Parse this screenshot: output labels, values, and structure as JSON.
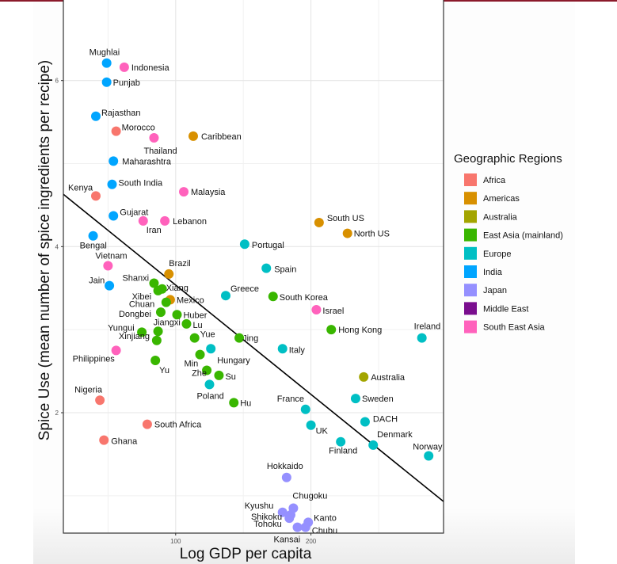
{
  "chart_data": {
    "type": "scatter",
    "title": "",
    "xlabel": "Log GDP per capita",
    "ylabel": "Spice Use (mean number of spice ingredients per recipe)",
    "xlim": [
      17,
      298
    ],
    "ylim": [
      0.55,
      6.97
    ],
    "xticks": [
      100,
      200
    ],
    "xtick_labels": [
      "100",
      "200"
    ],
    "yticks": [
      2,
      4,
      6
    ],
    "ytick_labels": [
      "2",
      "4",
      "6"
    ],
    "x_minor_grid": [
      50,
      150,
      250
    ],
    "y_minor_grid": [
      1,
      3,
      5
    ],
    "grid": true,
    "legend": {
      "title": "Geographic Regions",
      "position": "right",
      "entries": [
        {
          "name": "Africa",
          "color": "#f8766d"
        },
        {
          "name": "Americas",
          "color": "#d89000"
        },
        {
          "name": "Australia",
          "color": "#a3a500"
        },
        {
          "name": "East Asia (mainland)",
          "color": "#39b600"
        },
        {
          "name": "Europe",
          "color": "#00bfc4"
        },
        {
          "name": "India",
          "color": "#00a5ff"
        },
        {
          "name": "Japan",
          "color": "#9590ff"
        },
        {
          "name": "Middle East",
          "color": "#7a0e8e"
        },
        {
          "name": "South East Asia",
          "color": "#ff62bc"
        }
      ]
    },
    "trend_line": {
      "x": [
        17,
        298
      ],
      "y": [
        4.63,
        0.93
      ]
    },
    "points": [
      {
        "label": "Mughlai",
        "region": "India",
        "x": 49,
        "y": 6.21
      },
      {
        "label": "Indonesia",
        "region": "South East Asia",
        "x": 62,
        "y": 6.16
      },
      {
        "label": "Punjab",
        "region": "India",
        "x": 49,
        "y": 5.98
      },
      {
        "label": "Rajasthan",
        "region": "India",
        "x": 41,
        "y": 5.57
      },
      {
        "label": "Morocco",
        "region": "Africa",
        "x": 56,
        "y": 5.39
      },
      {
        "label": "Thailand",
        "region": "South East Asia",
        "x": 84,
        "y": 5.31
      },
      {
        "label": "Caribbean",
        "region": "Americas",
        "x": 113,
        "y": 5.33
      },
      {
        "label": "Maharashtra",
        "region": "India",
        "x": 54,
        "y": 5.03
      },
      {
        "label": "South India",
        "region": "India",
        "x": 53,
        "y": 4.75
      },
      {
        "label": "Kenya",
        "region": "Africa",
        "x": 41,
        "y": 4.61
      },
      {
        "label": "Malaysia",
        "region": "South East Asia",
        "x": 106,
        "y": 4.66
      },
      {
        "label": "Gujarat",
        "region": "India",
        "x": 54,
        "y": 4.37
      },
      {
        "label": "Iran",
        "region": "South East Asia",
        "x": 76,
        "y": 4.31
      },
      {
        "label": "Lebanon",
        "region": "South East Asia",
        "x": 92,
        "y": 4.31
      },
      {
        "label": "Bengal",
        "region": "India",
        "x": 39,
        "y": 4.13
      },
      {
        "label": "South US",
        "region": "Americas",
        "x": 206,
        "y": 4.29
      },
      {
        "label": "North US",
        "region": "Americas",
        "x": 227,
        "y": 4.16
      },
      {
        "label": "Portugal",
        "region": "Europe",
        "x": 151,
        "y": 4.03
      },
      {
        "label": "Vietnam",
        "region": "South East Asia",
        "x": 50,
        "y": 3.77
      },
      {
        "label": "Brazil",
        "region": "Americas",
        "x": 95,
        "y": 3.67
      },
      {
        "label": "Spain",
        "region": "Europe",
        "x": 167,
        "y": 3.74
      },
      {
        "label": "Jain",
        "region": "India",
        "x": 51,
        "y": 3.53
      },
      {
        "label": "Shanxi",
        "region": "East Asia (mainland)",
        "x": 84,
        "y": 3.56
      },
      {
        "label": "Xibei",
        "region": "East Asia (mainland)",
        "x": 87,
        "y": 3.47
      },
      {
        "label": "Xiang",
        "region": "East Asia (mainland)",
        "x": 90,
        "y": 3.49
      },
      {
        "label": "Greece",
        "region": "Europe",
        "x": 137,
        "y": 3.41
      },
      {
        "label": "South Korea",
        "region": "East Asia (mainland)",
        "x": 172,
        "y": 3.4
      },
      {
        "label": "Mexico",
        "region": "Americas",
        "x": 96,
        "y": 3.36
      },
      {
        "label": "Chuan",
        "region": "East Asia (mainland)",
        "x": 93,
        "y": 3.33
      },
      {
        "label": "Dongbei",
        "region": "East Asia (mainland)",
        "x": 89,
        "y": 3.21
      },
      {
        "label": "Huber",
        "region": "East Asia (mainland)",
        "x": 101,
        "y": 3.18
      },
      {
        "label": "Israel",
        "region": "South East Asia",
        "x": 204,
        "y": 3.24
      },
      {
        "label": "Jiangxi",
        "region": "East Asia (mainland)",
        "x": 87,
        "y": 2.98
      },
      {
        "label": "Lu",
        "region": "East Asia (mainland)",
        "x": 108,
        "y": 3.07
      },
      {
        "label": "Yungui",
        "region": "East Asia (mainland)",
        "x": 75,
        "y": 2.97
      },
      {
        "label": "Hong Kong",
        "region": "East Asia (mainland)",
        "x": 215,
        "y": 3.0
      },
      {
        "label": "Ireland",
        "region": "Europe",
        "x": 282,
        "y": 2.9
      },
      {
        "label": "Xinjiang",
        "region": "East Asia (mainland)",
        "x": 86,
        "y": 2.87
      },
      {
        "label": "Yue",
        "region": "East Asia (mainland)",
        "x": 114,
        "y": 2.9
      },
      {
        "label": "Jing",
        "region": "East Asia (mainland)",
        "x": 147,
        "y": 2.9
      },
      {
        "label": "Hungary",
        "region": "Europe",
        "x": 126,
        "y": 2.77
      },
      {
        "label": "Italy",
        "region": "Europe",
        "x": 179,
        "y": 2.77
      },
      {
        "label": "Philippines",
        "region": "South East Asia",
        "x": 56,
        "y": 2.75
      },
      {
        "label": "Min",
        "region": "East Asia (mainland)",
        "x": 118,
        "y": 2.7
      },
      {
        "label": "Yu",
        "region": "East Asia (mainland)",
        "x": 85,
        "y": 2.63
      },
      {
        "label": "Zhe",
        "region": "East Asia (mainland)",
        "x": 123,
        "y": 2.51
      },
      {
        "label": "Su",
        "region": "East Asia (mainland)",
        "x": 132,
        "y": 2.45
      },
      {
        "label": "Australia",
        "region": "Australia",
        "x": 239,
        "y": 2.43
      },
      {
        "label": "Poland",
        "region": "Europe",
        "x": 125,
        "y": 2.34
      },
      {
        "label": "Sweden",
        "region": "Europe",
        "x": 233,
        "y": 2.17
      },
      {
        "label": "Nigeria",
        "region": "Africa",
        "x": 44,
        "y": 2.15
      },
      {
        "label": "Hu",
        "region": "East Asia (mainland)",
        "x": 143,
        "y": 2.12
      },
      {
        "label": "France",
        "region": "Europe",
        "x": 196,
        "y": 2.04
      },
      {
        "label": "DACH",
        "region": "Europe",
        "x": 240,
        "y": 1.89
      },
      {
        "label": "UK",
        "region": "Europe",
        "x": 200,
        "y": 1.85
      },
      {
        "label": "South Africa",
        "region": "Africa",
        "x": 79,
        "y": 1.86
      },
      {
        "label": "Ghana",
        "region": "Africa",
        "x": 47,
        "y": 1.67
      },
      {
        "label": "Finland",
        "region": "Europe",
        "x": 222,
        "y": 1.65
      },
      {
        "label": "Denmark",
        "region": "Europe",
        "x": 246,
        "y": 1.61
      },
      {
        "label": "Norway",
        "region": "Europe",
        "x": 287,
        "y": 1.48
      },
      {
        "label": "Hokkaido",
        "region": "Japan",
        "x": 182,
        "y": 1.22
      },
      {
        "label": "Chugoku",
        "region": "Japan",
        "x": 187,
        "y": 0.85
      },
      {
        "label": "Kyushu",
        "region": "Japan",
        "x": 179,
        "y": 0.8
      },
      {
        "label": "Shikoku",
        "region": "Japan",
        "x": 185,
        "y": 0.77
      },
      {
        "label": "Kanto",
        "region": "Japan",
        "x": 198,
        "y": 0.68
      },
      {
        "label": "Tohoku",
        "region": "Japan",
        "x": 184,
        "y": 0.73
      },
      {
        "label": "Kansai",
        "region": "Japan",
        "x": 190,
        "y": 0.62
      },
      {
        "label": "Chubu",
        "region": "Japan",
        "x": 196,
        "y": 0.62
      }
    ]
  }
}
